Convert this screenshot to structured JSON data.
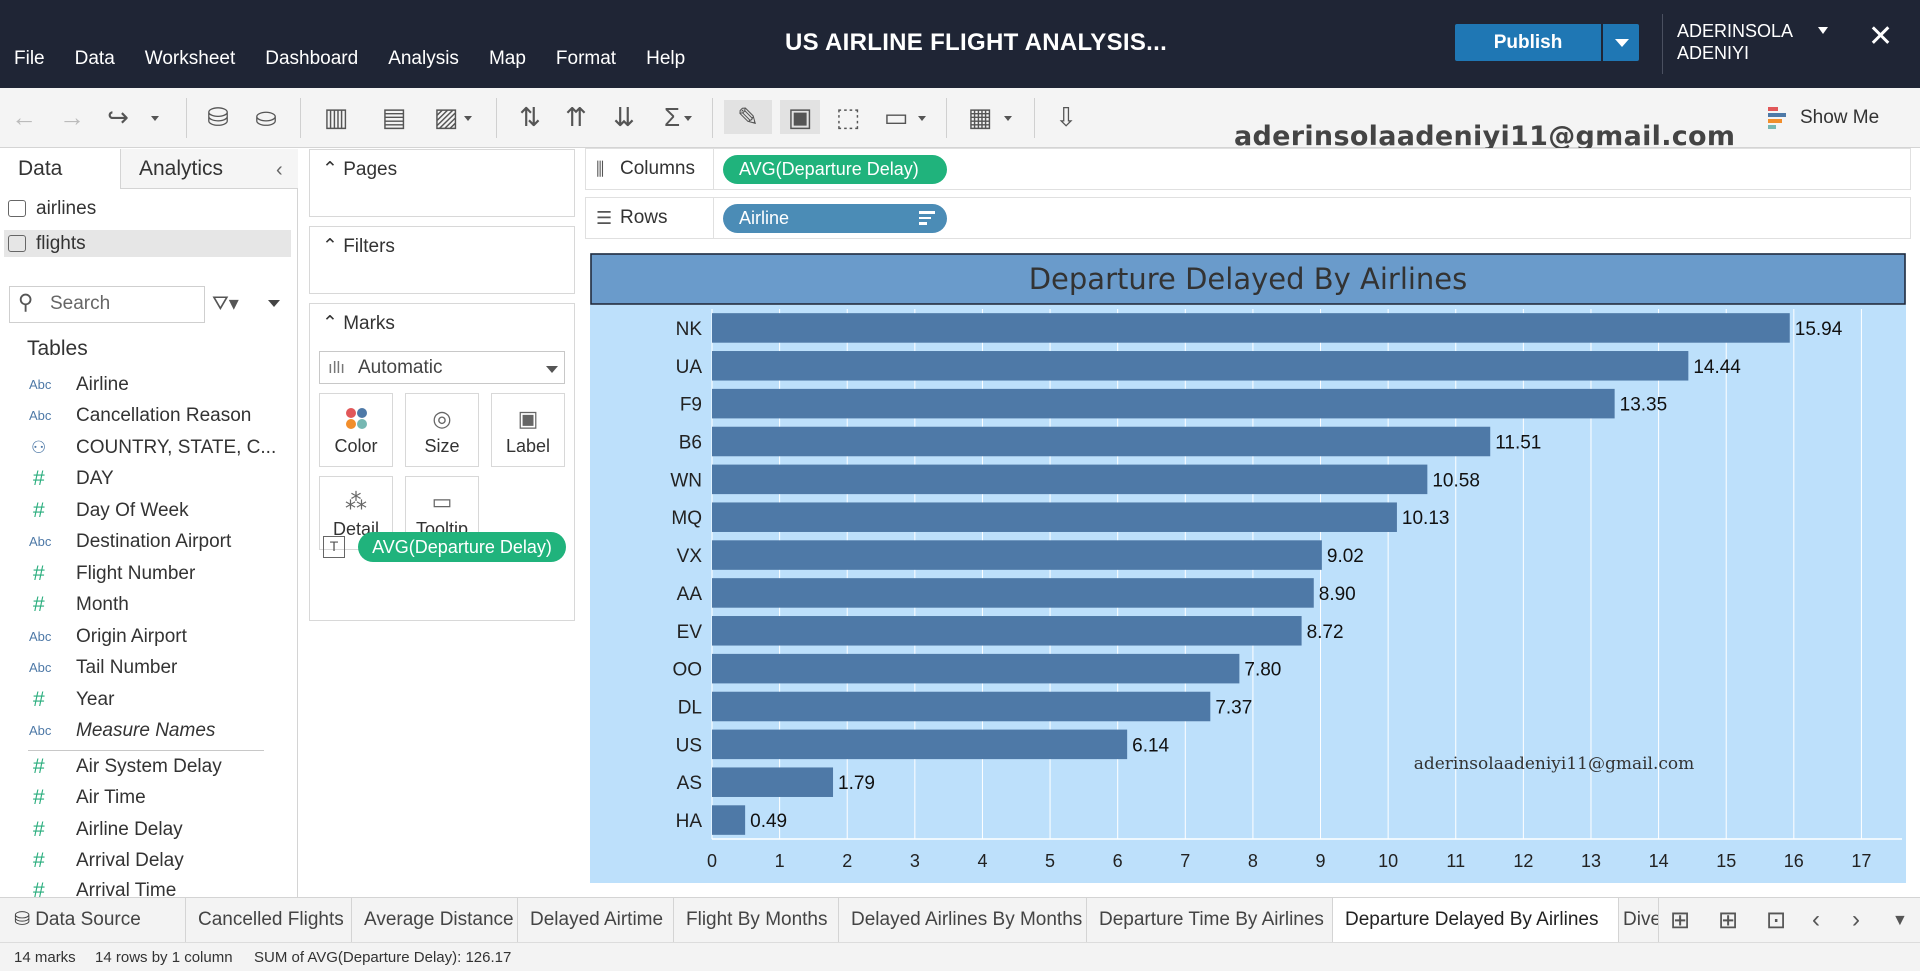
{
  "window": {
    "title": "US AIRLINE FLIGHT ANALYSIS...",
    "menu": [
      "File",
      "Data",
      "Worksheet",
      "Dashboard",
      "Analysis",
      "Map",
      "Format",
      "Help"
    ],
    "publish_label": "Publish",
    "user_name": "ADERINSOLA ADENIYI",
    "close_glyph": "✕"
  },
  "toolbar": {
    "show_me_label": "Show Me",
    "watermark": "aderinsolaadeniyi11@gmail.com"
  },
  "data_pane": {
    "tabs": [
      "Data",
      "Analytics"
    ],
    "data_sources": [
      "airlines",
      "flights"
    ],
    "search_placeholder": "Search",
    "tables_heading": "Tables",
    "fields": [
      {
        "type": "Abc",
        "name": "Airline"
      },
      {
        "type": "Abc",
        "name": "Cancellation Reason"
      },
      {
        "type": "hier",
        "name": "COUNTRY, STATE, C..."
      },
      {
        "type": "#",
        "name": "DAY"
      },
      {
        "type": "#",
        "name": "Day Of Week"
      },
      {
        "type": "Abc",
        "name": "Destination Airport"
      },
      {
        "type": "#",
        "name": "Flight Number"
      },
      {
        "type": "#",
        "name": "Month"
      },
      {
        "type": "Abc",
        "name": "Origin Airport"
      },
      {
        "type": "Abc",
        "name": "Tail Number"
      },
      {
        "type": "#",
        "name": "Year"
      },
      {
        "type": "Abc",
        "name": "Measure Names"
      }
    ],
    "measures": [
      {
        "type": "#",
        "name": "Air System Delay"
      },
      {
        "type": "#",
        "name": "Air Time"
      },
      {
        "type": "#",
        "name": "Airline Delay"
      },
      {
        "type": "#",
        "name": "Arrival Delay"
      },
      {
        "type": "#",
        "name": "Arrival Time"
      }
    ]
  },
  "cards": {
    "pages_title": "Pages",
    "filters_title": "Filters",
    "marks_title": "Marks",
    "mark_type": "Automatic",
    "mark_buttons": [
      "Color",
      "Size",
      "Label",
      "Detail",
      "Tooltip"
    ],
    "marks_pill": "AVG(Departure Delay)"
  },
  "shelves": {
    "columns_label": "Columns",
    "columns_pill": "AVG(Departure Delay)",
    "rows_label": "Rows",
    "rows_pill": "Airline"
  },
  "chart_data": {
    "type": "bar",
    "orientation": "horizontal",
    "title": "Departure Delayed By Airlines",
    "categories": [
      "NK",
      "UA",
      "F9",
      "B6",
      "WN",
      "MQ",
      "VX",
      "AA",
      "EV",
      "OO",
      "DL",
      "US",
      "AS",
      "HA"
    ],
    "values": [
      15.94,
      14.44,
      13.35,
      11.51,
      10.58,
      10.13,
      9.02,
      8.9,
      8.72,
      7.8,
      7.37,
      6.14,
      1.79,
      0.49
    ],
    "labels": [
      "15.94",
      "14.44",
      "13.35",
      "11.51",
      "10.58",
      "10.13",
      "9.02",
      "8.90",
      "8.72",
      "7.80",
      "7.37",
      "6.14",
      "1.79",
      "0.49"
    ],
    "xlabel": "",
    "ylabel": "",
    "xlim": [
      0,
      17.6
    ],
    "ticks": [
      0,
      1,
      2,
      3,
      4,
      5,
      6,
      7,
      8,
      9,
      10,
      11,
      12,
      13,
      14,
      15,
      16,
      17
    ],
    "grid": true,
    "bar_color": "#4e79a7",
    "background": "#bde0fb",
    "title_background": "#6a9bcb",
    "annotation": "aderinsolaadeniyi11@gmail.com"
  },
  "sheet_tabs": {
    "data_source": "Data Source",
    "tabs": [
      "Cancelled Flights",
      "Average Distance",
      "Delayed Airtime",
      "Flight By Months",
      "Delayed Airlines By Months",
      "Departure Time By Airlines",
      "Departure Delayed By Airlines",
      "Dive"
    ],
    "active": "Departure Delayed By Airlines"
  },
  "status": {
    "marks": "14 marks",
    "dims": "14 rows by 1 column",
    "sum": "SUM of AVG(Departure Delay): 126.17"
  }
}
